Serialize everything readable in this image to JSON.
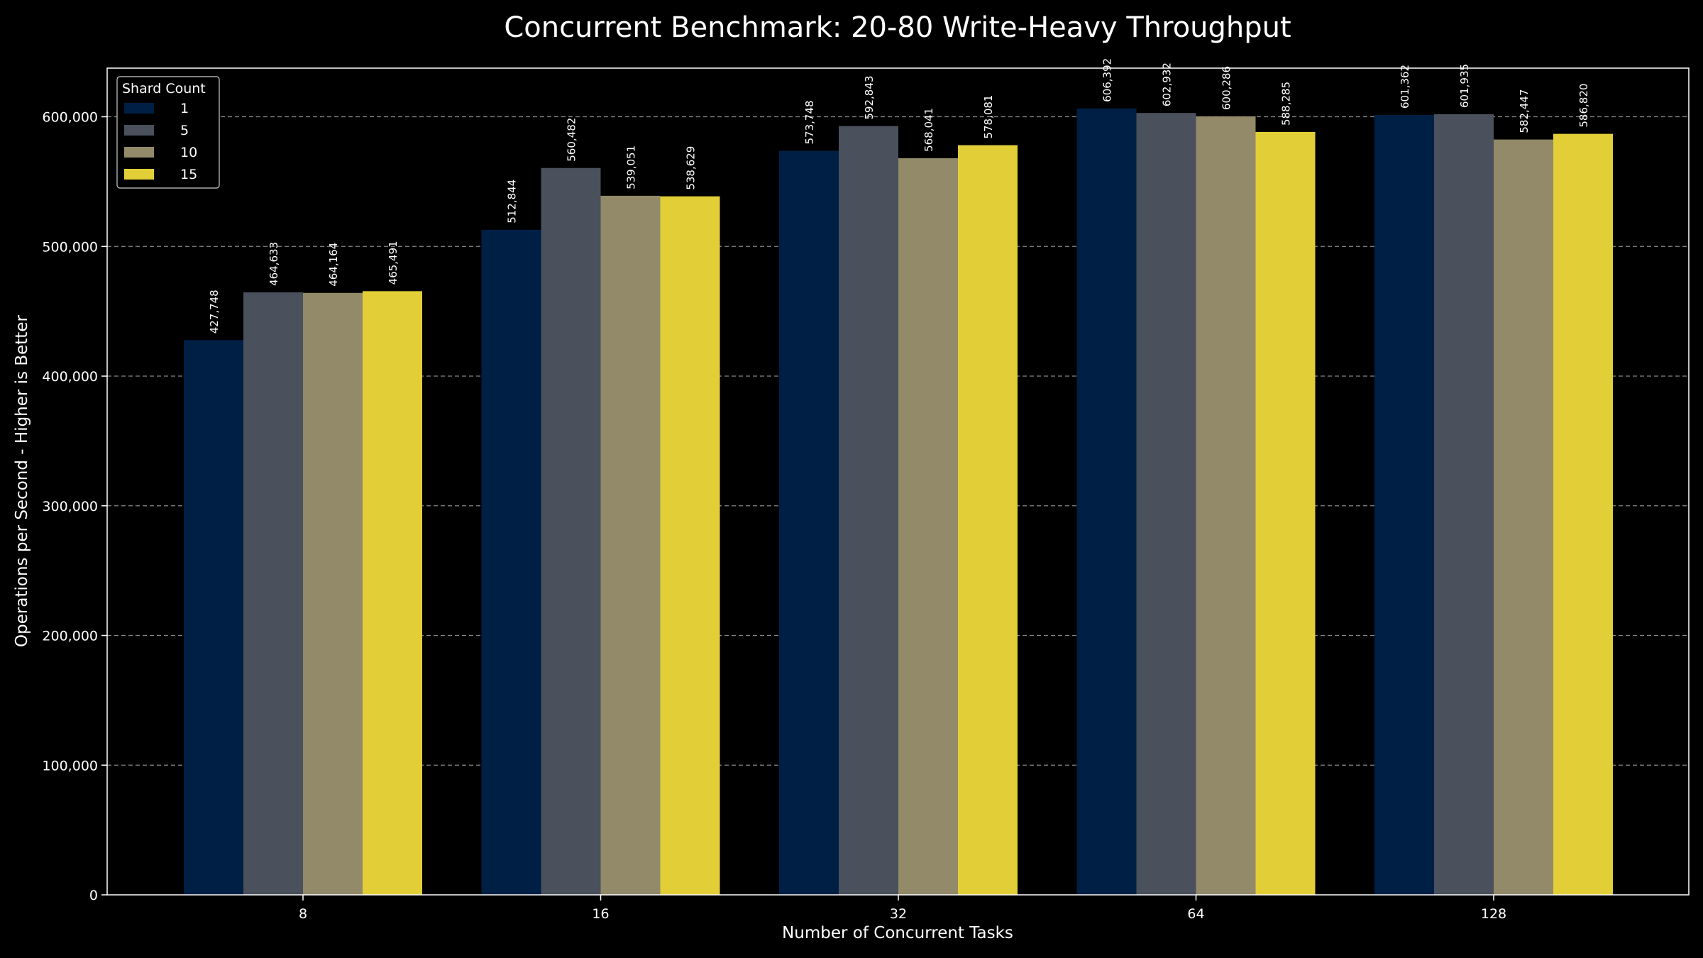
{
  "chart_data": {
    "type": "bar",
    "title": "Concurrent Benchmark: 20-80 Write-Heavy Throughput",
    "xlabel": "Number of Concurrent Tasks",
    "ylabel": "Operations per Second - Higher is Better",
    "categories": [
      "8",
      "16",
      "32",
      "64",
      "128"
    ],
    "ylim": [
      0,
      637500
    ],
    "yticks": [
      0,
      100000,
      200000,
      300000,
      400000,
      500000,
      600000
    ],
    "grid": true,
    "legend": {
      "title": "Shard Count",
      "placement": "top-left"
    },
    "series": [
      {
        "name": "1",
        "color": "#001f45",
        "values": [
          427748,
          512844,
          573748,
          606392,
          601362
        ]
      },
      {
        "name": "5",
        "color": "#4a505c",
        "values": [
          464633,
          560482,
          592843,
          602932,
          601935
        ]
      },
      {
        "name": "10",
        "color": "#928a68",
        "values": [
          464164,
          539051,
          568041,
          600286,
          582447
        ]
      },
      {
        "name": "15",
        "color": "#e2cf37",
        "values": [
          465491,
          538629,
          578081,
          588285,
          586820
        ]
      }
    ]
  }
}
